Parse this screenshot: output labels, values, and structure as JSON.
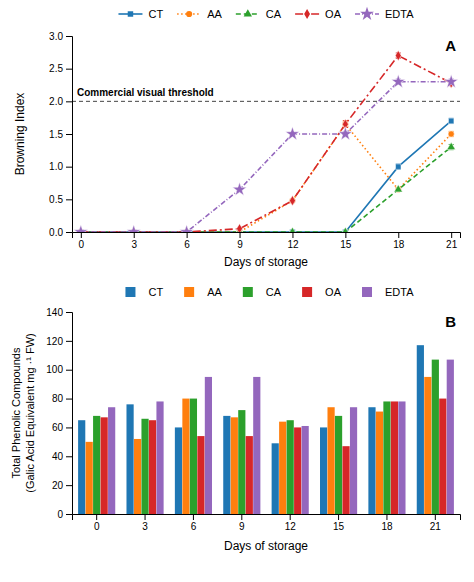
{
  "chart_data": [
    {
      "type": "line",
      "title": "A",
      "x": [
        0,
        3,
        6,
        9,
        12,
        15,
        18,
        21
      ],
      "xlim": [
        -0.5,
        21.5
      ],
      "xticks": [
        0,
        3,
        6,
        9,
        12,
        15,
        18,
        21
      ],
      "ylim": [
        0,
        3.0
      ],
      "yticks": [
        {
          "value": 0,
          "label": "0.0"
        },
        0.5,
        {
          "value": 1.0,
          "label": "1.0"
        },
        1.5,
        {
          "value": 2.0,
          "label": "2.0"
        },
        2.5,
        {
          "value": 3.0,
          "label": "3.0"
        }
      ],
      "xlabel": "Days of storage",
      "ylabel": "Browning Index",
      "grid": false,
      "legend": "top",
      "series": [
        {
          "name": "CT",
          "values": [
            0.0,
            0.0,
            0.0,
            0.0,
            0.0,
            0.0,
            1.0,
            1.7
          ],
          "errors": [
            0.0,
            0.0,
            0.0,
            0.0,
            0.0,
            0.0,
            0.04,
            0.04
          ],
          "marker": "square",
          "line_style": "solid"
        },
        {
          "name": "AA",
          "values": [
            0.0,
            0.0,
            0.0,
            0.0,
            0.48,
            1.65,
            0.65,
            1.5
          ],
          "errors": [
            0.0,
            0.0,
            0.0,
            0.0,
            0.02,
            0.05,
            0.03,
            0.04
          ],
          "marker": "circle",
          "line_style": "dotted"
        },
        {
          "name": "CA",
          "values": [
            0.0,
            0.0,
            0.0,
            0.0,
            0.0,
            0.0,
            0.65,
            1.3
          ],
          "errors": [
            0.0,
            0.0,
            0.0,
            0.0,
            0.0,
            0.0,
            0.03,
            0.04
          ],
          "marker": "triangle",
          "line_style": "dashed"
        },
        {
          "name": "OA",
          "values": [
            0.0,
            0.0,
            0.0,
            0.05,
            0.48,
            1.65,
            2.7,
            2.28
          ],
          "errors": [
            0.0,
            0.0,
            0.0,
            0.01,
            0.02,
            0.05,
            0.04,
            0.04
          ],
          "marker": "diamond",
          "line_style": "dashdot"
        },
        {
          "name": "EDTA",
          "values": [
            0.0,
            0.0,
            0.0,
            0.65,
            1.5,
            1.5,
            2.3,
            2.3
          ],
          "errors": [
            0.0,
            0.0,
            0.0,
            0.02,
            0.02,
            0.04,
            0.04,
            0.04
          ],
          "marker": "star",
          "line_style": "densedashdot"
        }
      ],
      "annotations": [
        {
          "text": "Commercial visual threshold",
          "y": 2.0
        }
      ]
    },
    {
      "type": "bar",
      "title": "B",
      "categories": [
        0,
        3,
        6,
        9,
        12,
        15,
        18,
        21
      ],
      "ylim": [
        0,
        140
      ],
      "yticks": [
        0,
        20,
        40,
        60,
        80,
        100,
        120,
        140
      ],
      "xlabel": "Days of storage",
      "ylabel": "Total Phenolic Compounds\n(Galic Acid Equivalent mg ·¹ FW)",
      "grid": false,
      "legend": "top",
      "series": [
        {
          "name": "CT",
          "values": [
            65,
            76,
            60,
            68,
            49,
            60,
            74,
            117
          ]
        },
        {
          "name": "AA",
          "values": [
            50,
            52,
            80,
            67,
            64,
            74,
            71,
            95
          ]
        },
        {
          "name": "CA",
          "values": [
            68,
            66,
            80,
            72,
            65,
            68,
            78,
            107
          ]
        },
        {
          "name": "OA",
          "values": [
            67,
            65,
            54,
            54,
            60,
            47,
            78,
            80
          ]
        },
        {
          "name": "EDTA",
          "values": [
            74,
            78,
            95,
            95,
            61,
            74,
            78,
            107
          ]
        }
      ]
    }
  ]
}
